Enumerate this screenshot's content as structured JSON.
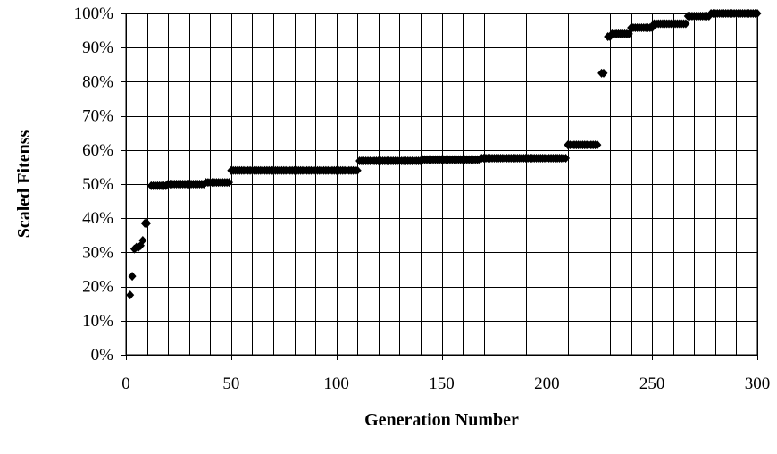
{
  "chart_data": {
    "type": "scatter",
    "xlabel": "Generation Number",
    "ylabel": "Scaled Fitenss",
    "xlim": [
      0,
      300
    ],
    "ylim": [
      0,
      100
    ],
    "x_ticks": [
      0,
      50,
      100,
      150,
      200,
      250,
      300
    ],
    "x_tick_labels": [
      "0",
      "50",
      "100",
      "150",
      "200",
      "250",
      "300"
    ],
    "y_ticks": [
      0,
      10,
      20,
      30,
      40,
      50,
      60,
      70,
      80,
      90,
      100
    ],
    "y_tick_labels": [
      "0%",
      "10%",
      "20%",
      "30%",
      "40%",
      "50%",
      "60%",
      "70%",
      "80%",
      "90%",
      "100%"
    ],
    "x_gridline_step": 10,
    "grid": true,
    "marker": "diamond",
    "marker_color": "#000000",
    "step_segments": [
      {
        "from": 2,
        "to": 2,
        "value": 17.5
      },
      {
        "from": 3,
        "to": 3,
        "value": 23
      },
      {
        "from": 4,
        "to": 4,
        "value": 31
      },
      {
        "from": 5,
        "to": 6,
        "value": 31.5
      },
      {
        "from": 7,
        "to": 7,
        "value": 32
      },
      {
        "from": 8,
        "to": 8,
        "value": 33.5
      },
      {
        "from": 9,
        "to": 10,
        "value": 38.5
      },
      {
        "from": 12,
        "to": 19,
        "value": 49.5
      },
      {
        "from": 20,
        "to": 37,
        "value": 50
      },
      {
        "from": 38,
        "to": 49,
        "value": 50.5
      },
      {
        "from": 50,
        "to": 110,
        "value": 54
      },
      {
        "from": 111,
        "to": 140,
        "value": 56.8
      },
      {
        "from": 141,
        "to": 168,
        "value": 57.2
      },
      {
        "from": 169,
        "to": 209,
        "value": 57.6
      },
      {
        "from": 210,
        "to": 224,
        "value": 61.5
      },
      {
        "from": 226,
        "to": 227,
        "value": 82.5
      },
      {
        "from": 229,
        "to": 230,
        "value": 93.2
      },
      {
        "from": 231,
        "to": 239,
        "value": 94
      },
      {
        "from": 240,
        "to": 250,
        "value": 95.8
      },
      {
        "from": 251,
        "to": 266,
        "value": 97
      },
      {
        "from": 267,
        "to": 277,
        "value": 99.2
      },
      {
        "from": 278,
        "to": 300,
        "value": 100
      }
    ]
  }
}
